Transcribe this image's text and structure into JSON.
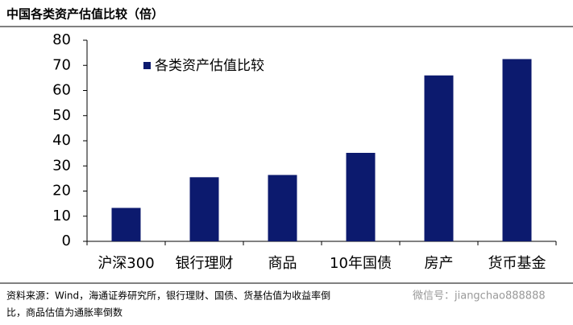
{
  "chart_data": {
    "type": "bar",
    "title": "中国各类资产估值比较（倍）",
    "categories": [
      "沪深300",
      "银行理财",
      "商品",
      "10年国债",
      "房产",
      "货币基金"
    ],
    "series": [
      {
        "name": "各类资产估值比较",
        "color": "#0c1a6e",
        "values": [
          13.3,
          25.5,
          26.4,
          35.2,
          66,
          72.5
        ]
      }
    ],
    "ylim": [
      0,
      80
    ],
    "yticks": [
      0,
      10,
      20,
      30,
      40,
      50,
      60,
      70,
      80
    ],
    "source_lines": [
      "资料来源：Wind，海通证券研究所，银行理财、国债、货基估值为收益率倒",
      "比，商品估值为通胀率倒数"
    ],
    "watermark": "微信号：jiangchao888888"
  }
}
